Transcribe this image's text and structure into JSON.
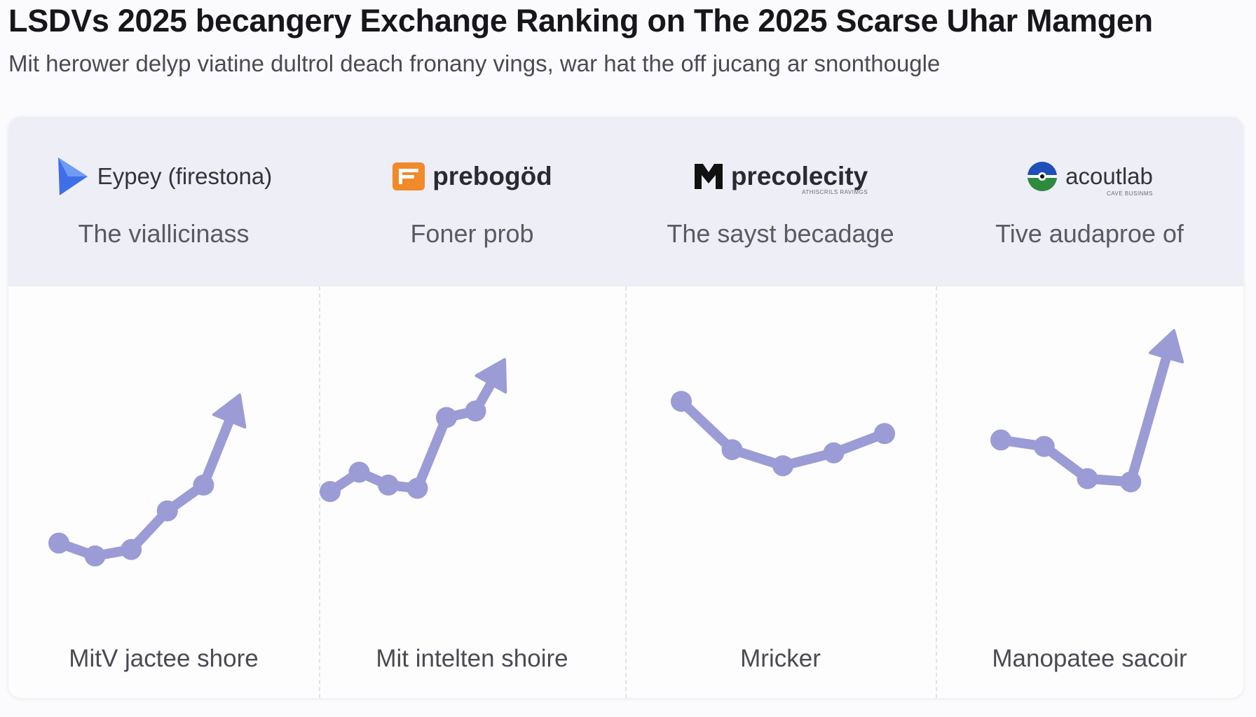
{
  "header": {
    "title": "LSDVs 2025 becangery Exchange Ranking on The 2025 Scarse Uhar Mamgen",
    "subtitle": "Mit herower delyp viatine dultrol deach fronany vings, war hat the off jucang ar snonthougle"
  },
  "colors": {
    "line": "#9b9bd6",
    "header_band": "#eeeef6",
    "logo1_play": "#3f6fe8",
    "logo2_orange": "#f08a2a",
    "logo3_dark": "#111111",
    "logo4_blue": "#1f4fb8",
    "logo4_green": "#2e8b3e"
  },
  "columns": [
    {
      "logo_icon": "play-triangle-icon",
      "logo_text": "Eypey (firestona)",
      "label": "The viallicinass",
      "footer": "MitV jactee shore"
    },
    {
      "logo_icon": "orange-square-f-icon",
      "logo_text": "prebogöd",
      "label": "Foner prob",
      "footer": "Mit intelten shoire"
    },
    {
      "logo_icon": "black-m-glyph-icon",
      "logo_text": "precolecity",
      "logo_subtext": "ATHISCRILS RAVIMGS",
      "label": "The sayst becadage",
      "footer": "Mricker"
    },
    {
      "logo_icon": "blue-green-circle-icon",
      "logo_text": "acoutlab",
      "logo_subtext": "CAVE BUSINMS",
      "label": "Tive audaproe of",
      "footer": "Manopatee sacoir"
    }
  ],
  "chart_data": [
    {
      "type": "line",
      "x": [
        1,
        2,
        3,
        4,
        5,
        6
      ],
      "y": [
        29,
        25,
        27,
        39,
        47,
        75
      ],
      "ylim": [
        0,
        100
      ],
      "arrow_end": true
    },
    {
      "type": "line",
      "x": [
        1,
        2,
        3,
        4,
        5,
        6,
        7
      ],
      "y": [
        45,
        51,
        47,
        46,
        68,
        70,
        86
      ],
      "ylim": [
        0,
        100
      ],
      "arrow_end": true
    },
    {
      "type": "line",
      "x": [
        1,
        2,
        3,
        4,
        5
      ],
      "y": [
        73,
        58,
        53,
        57,
        63
      ],
      "ylim": [
        0,
        100
      ],
      "arrow_end": false
    },
    {
      "type": "line",
      "x": [
        1,
        2,
        3,
        4,
        5
      ],
      "y": [
        61,
        59,
        49,
        48,
        95
      ],
      "ylim": [
        0,
        100
      ],
      "arrow_end": true
    }
  ]
}
